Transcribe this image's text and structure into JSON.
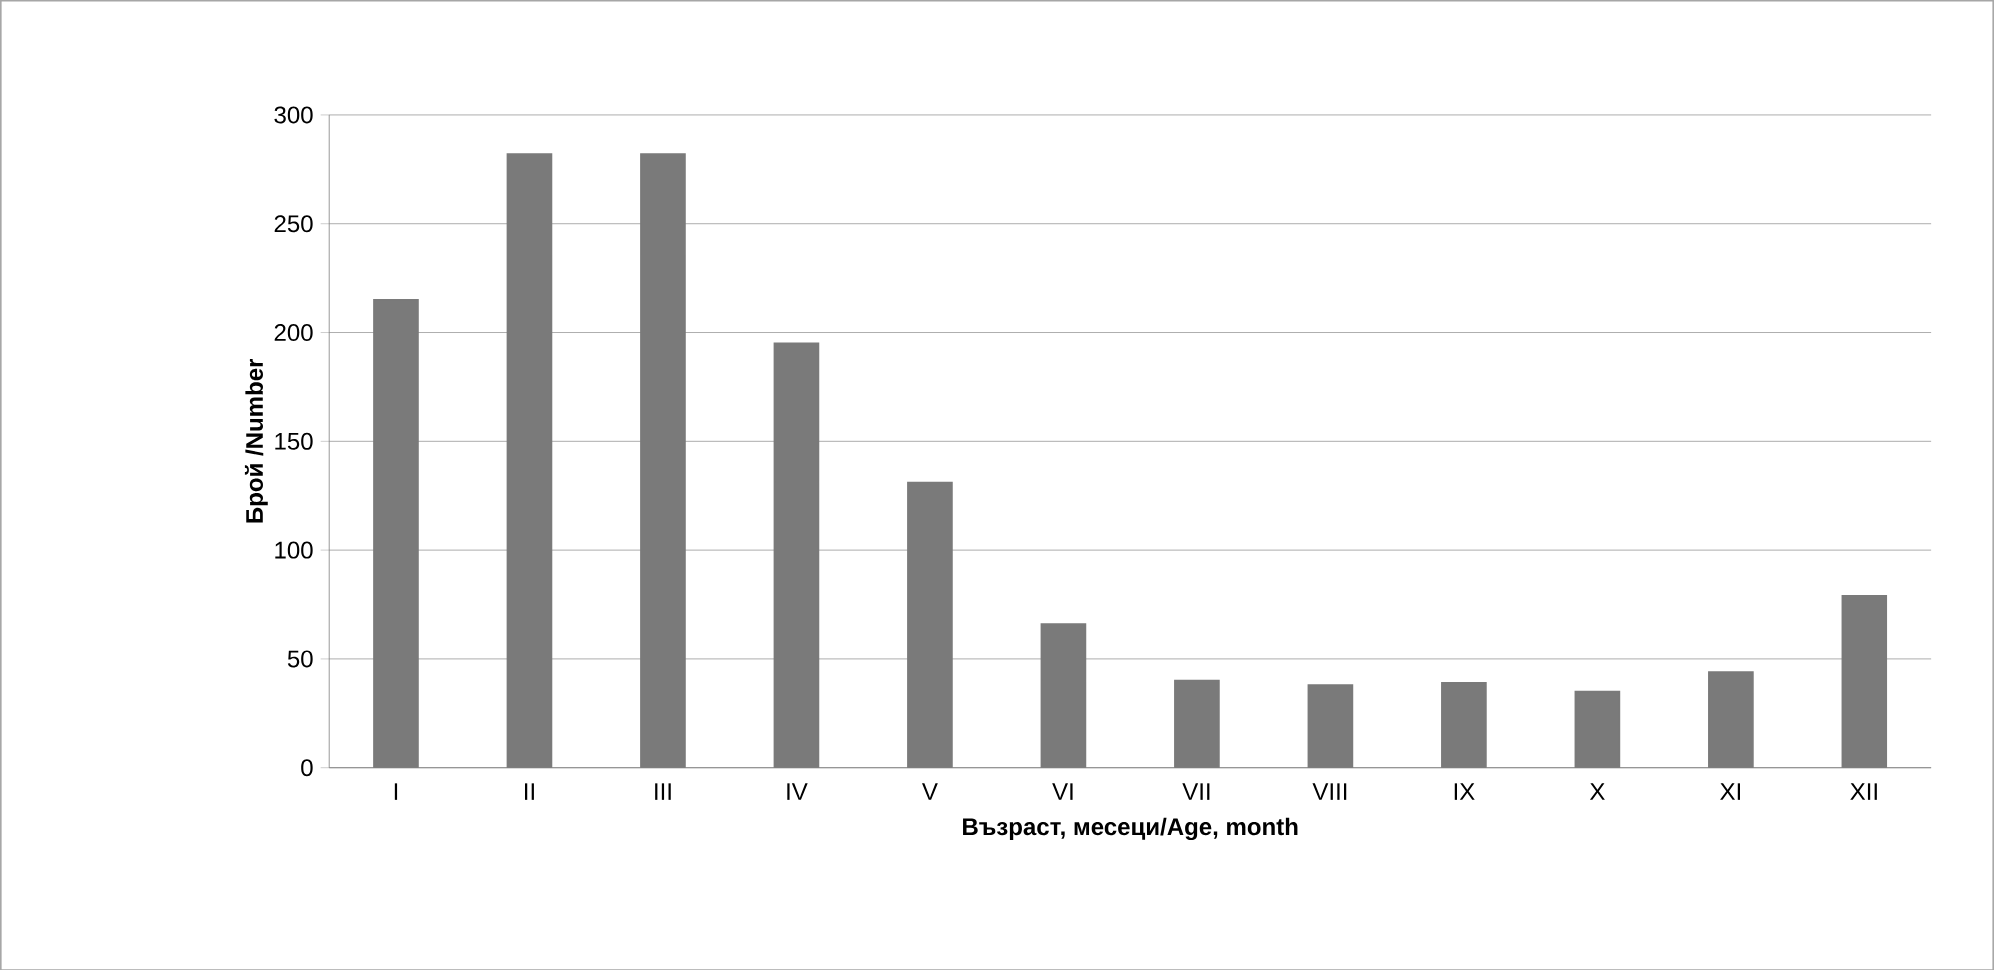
{
  "chart_data": {
    "type": "bar",
    "xlabel": "Възраст,  месеци/Age, month",
    "ylabel": "Брой /Number",
    "categories": [
      "I",
      "II",
      "III",
      "IV",
      "V",
      "VI",
      "VII",
      "VIII",
      "IX",
      "X",
      "XI",
      "XII"
    ],
    "values": [
      215,
      282,
      282,
      195,
      131,
      66,
      40,
      38,
      39,
      35,
      44,
      79
    ],
    "color": "#7a7a7a",
    "ylim": [
      0,
      300
    ],
    "yticks": [
      0,
      50,
      100,
      150,
      200,
      250,
      300
    ],
    "grid": "y"
  }
}
